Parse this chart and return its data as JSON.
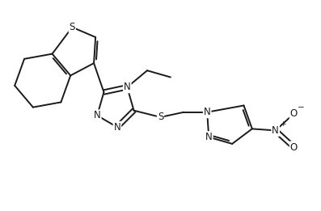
{
  "bg_color": "#ffffff",
  "line_color": "#1a1a1a",
  "line_width": 1.4,
  "font_size": 8.5,
  "fig_width": 3.97,
  "fig_height": 2.61,
  "dpi": 100,
  "xlim": [
    0,
    9.5
  ],
  "ylim": [
    0,
    6.3
  ]
}
